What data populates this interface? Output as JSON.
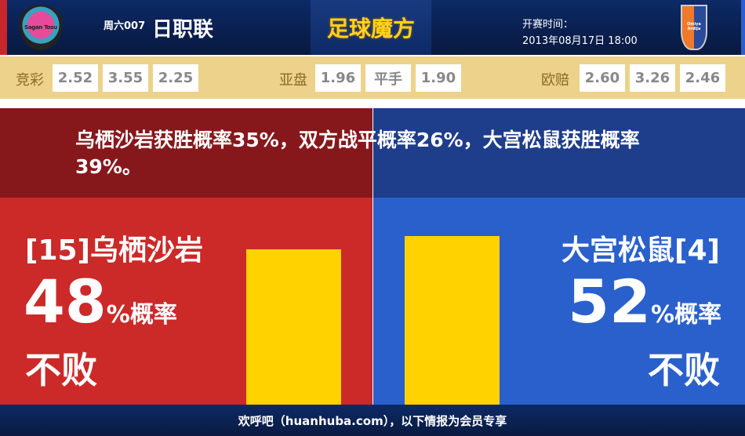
{
  "header": {
    "league_prefix": "周六007",
    "league": "日职联",
    "brand": "足球魔方",
    "time_label": "开赛时间：",
    "time_value": "2013年08月17日 18:00",
    "home_logo_text": "Sagan Tosu",
    "away_logo_text": "Omiya Ardija"
  },
  "odds": {
    "jingcai": {
      "label": "竞彩",
      "values": [
        "2.52",
        "3.55",
        "2.25"
      ]
    },
    "yapan": {
      "label": "亚盘",
      "values": [
        "1.96",
        "平手",
        "1.90"
      ]
    },
    "ouzhi": {
      "label": "欧赔",
      "values": [
        "2.60",
        "3.26",
        "2.46"
      ]
    }
  },
  "summary": "乌栖沙岩获胜概率35%，双方战平概率26%，大宫松鼠获胜概率39%。",
  "home": {
    "team": "[15]乌栖沙岩",
    "percent": "48",
    "unit": "%概率",
    "outcome": "不败",
    "value": 48
  },
  "away": {
    "team": "大宫松鼠[4]",
    "percent": "52",
    "unit": "%概率",
    "outcome": "不败",
    "value": 52
  },
  "colors": {
    "home": "#cc2929",
    "away": "#2a60cc",
    "bar": "#ffd200",
    "odds_band": "#ecd28a"
  },
  "footer": "欢呼吧（huanhuba.com），以下情报为会员专享"
}
